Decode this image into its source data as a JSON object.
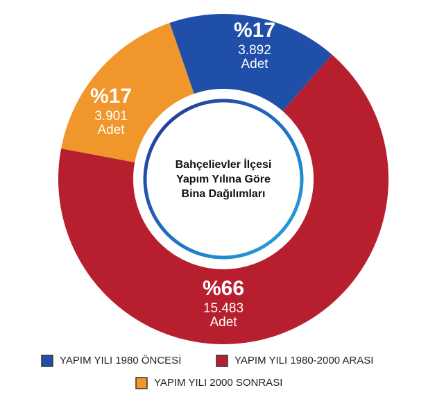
{
  "chart_data": {
    "type": "pie",
    "title_lines": [
      "Bahçelievler İlçesi",
      "Yapım Yılına Göre",
      "Bina Dağılımları"
    ],
    "series": [
      {
        "name": "YAPIM YILI 1980 ÖNCESİ",
        "color": "#1f4fa8",
        "values": [
          3892
        ],
        "value_labels": [
          "3.892"
        ],
        "percent_label": "%17",
        "unit": "Adet"
      },
      {
        "name": "YAPIM YILI 1980-2000 ARASI",
        "color": "#b81f2e",
        "values": [
          15483
        ],
        "value_labels": [
          "15.483"
        ],
        "percent_label": "%66",
        "unit": "Adet"
      },
      {
        "name": "YAPIM YILI 2000 SONRASI",
        "color": "#f0962a",
        "values": [
          3901
        ],
        "value_labels": [
          "3.901"
        ],
        "percent_label": "%17",
        "unit": "Adet"
      }
    ]
  }
}
